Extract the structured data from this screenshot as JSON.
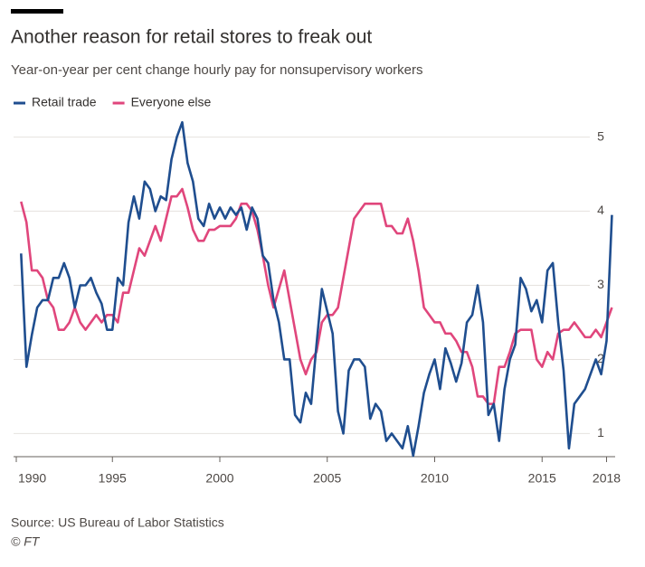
{
  "chart_data": {
    "type": "line",
    "title": "Another reason for retail stores to freak out",
    "subtitle": "Year-on-year per cent change hourly pay for nonsupervisory workers",
    "source": "Source: US Bureau of Labor Statistics",
    "credit": "© FT",
    "x": [
      1990.75,
      1991,
      1991.25,
      1991.5,
      1991.75,
      1992,
      1992.25,
      1992.5,
      1992.75,
      1993,
      1993.25,
      1993.5,
      1993.75,
      1994,
      1994.25,
      1994.5,
      1994.75,
      1995,
      1995.25,
      1995.5,
      1995.75,
      1996,
      1996.25,
      1996.5,
      1996.75,
      1997,
      1997.25,
      1997.5,
      1997.75,
      1998,
      1998.25,
      1998.5,
      1998.75,
      1999,
      1999.25,
      1999.5,
      1999.75,
      2000,
      2000.25,
      2000.5,
      2000.75,
      2001,
      2001.25,
      2001.5,
      2001.75,
      2002,
      2002.25,
      2002.5,
      2002.75,
      2003,
      2003.25,
      2003.5,
      2003.75,
      2004,
      2004.25,
      2004.5,
      2004.75,
      2005,
      2005.25,
      2005.5,
      2005.75,
      2006,
      2006.25,
      2006.5,
      2006.75,
      2007,
      2007.25,
      2007.5,
      2007.75,
      2008,
      2008.25,
      2008.5,
      2008.75,
      2009,
      2009.25,
      2009.5,
      2009.75,
      2010,
      2010.25,
      2010.5,
      2010.75,
      2011,
      2011.25,
      2011.5,
      2011.75,
      2012,
      2012.25,
      2012.5,
      2012.75,
      2013,
      2013.25,
      2013.5,
      2013.75,
      2014,
      2014.25,
      2014.5,
      2014.75,
      2015,
      2015.25,
      2015.5,
      2015.75,
      2016,
      2016.25,
      2016.5,
      2016.75,
      2017,
      2017.25,
      2017.5,
      2017.75,
      2018,
      2018.25
    ],
    "series": [
      {
        "name": "Retail trade",
        "color": "#1f4e8f",
        "values": [
          3.43,
          1.9,
          2.33,
          2.7,
          2.8,
          2.8,
          3.1,
          3.1,
          3.3,
          3.1,
          2.7,
          3.0,
          3.0,
          3.1,
          2.9,
          2.75,
          2.4,
          2.4,
          3.1,
          3.0,
          3.85,
          4.2,
          3.9,
          4.4,
          4.3,
          4.0,
          4.2,
          4.15,
          4.7,
          5.0,
          5.2,
          4.65,
          4.4,
          3.9,
          3.8,
          4.1,
          3.9,
          4.05,
          3.9,
          4.05,
          3.95,
          4.05,
          3.75,
          4.05,
          3.9,
          3.4,
          3.3,
          2.8,
          2.5,
          2.0,
          2.0,
          1.25,
          1.15,
          1.55,
          1.4,
          2.2,
          2.95,
          2.65,
          2.35,
          1.3,
          1.0,
          1.85,
          2.0,
          2.0,
          1.9,
          1.2,
          1.4,
          1.3,
          0.9,
          1.0,
          0.9,
          0.8,
          1.1,
          0.7,
          1.1,
          1.55,
          1.8,
          2.0,
          1.6,
          2.15,
          1.95,
          1.7,
          1.95,
          2.5,
          2.6,
          3.0,
          2.5,
          1.25,
          1.4,
          0.9,
          1.6,
          2.0,
          2.2,
          3.1,
          2.95,
          2.65,
          2.8,
          2.5,
          3.2,
          3.3,
          2.5,
          1.85,
          0.8,
          1.4,
          1.5,
          1.6,
          1.8,
          2.0,
          1.8,
          2.25,
          3.95
        ]
      },
      {
        "name": "Everyone else",
        "color": "#e0467c",
        "values": [
          4.13,
          3.85,
          3.2,
          3.2,
          3.1,
          2.8,
          2.7,
          2.4,
          2.4,
          2.5,
          2.7,
          2.5,
          2.4,
          2.5,
          2.6,
          2.5,
          2.6,
          2.6,
          2.5,
          2.9,
          2.9,
          3.2,
          3.5,
          3.4,
          3.6,
          3.8,
          3.6,
          3.9,
          4.2,
          4.2,
          4.3,
          4.05,
          3.75,
          3.6,
          3.6,
          3.75,
          3.75,
          3.8,
          3.8,
          3.8,
          3.9,
          4.1,
          4.1,
          4.0,
          3.75,
          3.4,
          3.0,
          2.7,
          2.95,
          3.2,
          2.8,
          2.4,
          2.0,
          1.8,
          2.0,
          2.1,
          2.5,
          2.6,
          2.6,
          2.7,
          3.1,
          3.5,
          3.9,
          4.0,
          4.1,
          4.1,
          4.1,
          4.1,
          3.8,
          3.8,
          3.7,
          3.7,
          3.9,
          3.6,
          3.2,
          2.7,
          2.6,
          2.5,
          2.5,
          2.35,
          2.35,
          2.25,
          2.1,
          2.1,
          1.9,
          1.5,
          1.5,
          1.4,
          1.4,
          1.9,
          1.9,
          2.1,
          2.35,
          2.4,
          2.4,
          2.4,
          2.0,
          1.9,
          2.1,
          2.0,
          2.35,
          2.4,
          2.4,
          2.5,
          2.4,
          2.3,
          2.3,
          2.4,
          2.3,
          2.5,
          2.7
        ]
      }
    ],
    "xlim": [
      1990.4,
      2018.4
    ],
    "xticks": [
      1990,
      1995,
      2000,
      2005,
      2010,
      2015,
      2018
    ],
    "ylim": [
      0.7,
      5.3
    ],
    "yticks": [
      1,
      2,
      3,
      4,
      5
    ],
    "grid": true
  }
}
